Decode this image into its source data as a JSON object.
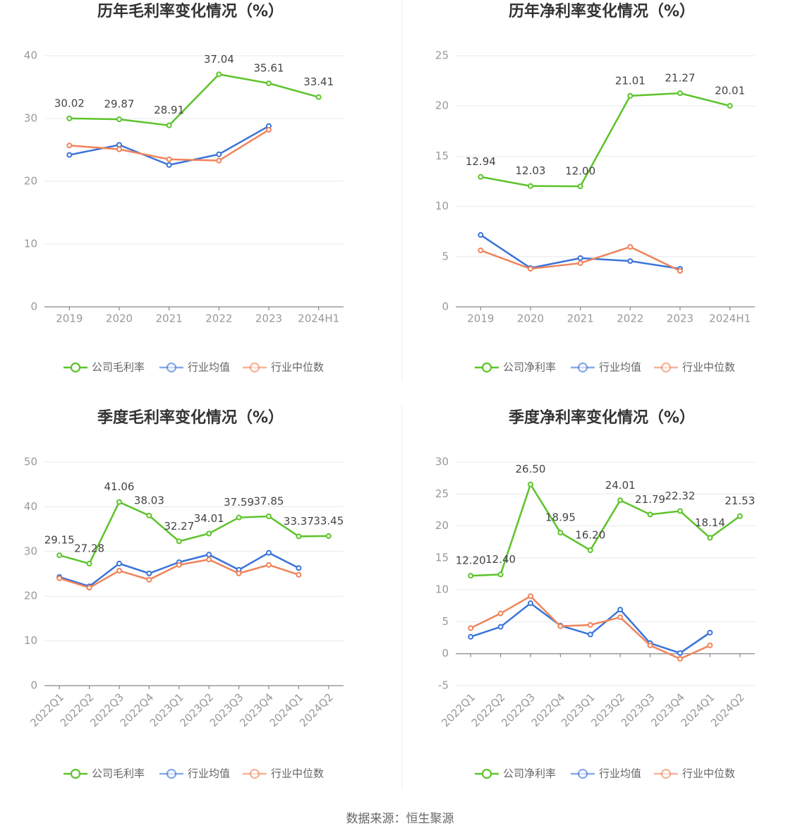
{
  "chart_data": [
    {
      "type": "line",
      "title": "历年毛利率变化情况（%）",
      "categories": [
        "2019",
        "2020",
        "2021",
        "2022",
        "2023",
        "2024H1"
      ],
      "series": [
        {
          "name": "公司毛利率",
          "color": "#5cc32a",
          "values": [
            30.02,
            29.87,
            28.91,
            37.04,
            35.61,
            33.41
          ],
          "value_labels": [
            "30.02",
            "29.87",
            "28.91",
            "37.04",
            "35.61",
            "33.41"
          ]
        },
        {
          "name": "行业均值",
          "color": "#3a73d9",
          "values": [
            24.2,
            25.8,
            22.6,
            24.3,
            28.8,
            null
          ]
        },
        {
          "name": "行业中位数",
          "color": "#f0835a",
          "values": [
            25.7,
            25.1,
            23.5,
            23.3,
            28.2,
            null
          ]
        }
      ],
      "ylim": [
        0,
        40
      ],
      "yticks": [
        0,
        10,
        20,
        30,
        40
      ],
      "grid": true,
      "legend": "bottom"
    },
    {
      "type": "line",
      "title": "历年净利率变化情况（%）",
      "categories": [
        "2019",
        "2020",
        "2021",
        "2022",
        "2023",
        "2024H1"
      ],
      "series": [
        {
          "name": "公司净利率",
          "color": "#5cc32a",
          "values": [
            12.94,
            12.03,
            12.0,
            21.01,
            21.27,
            20.01
          ],
          "value_labels": [
            "12.94",
            "12.03",
            "12.00",
            "21.01",
            "21.27",
            "20.01"
          ]
        },
        {
          "name": "行业均值",
          "color": "#3a73d9",
          "values": [
            7.16,
            3.86,
            4.85,
            4.56,
            3.79,
            null
          ]
        },
        {
          "name": "行业中位数",
          "color": "#f0835a",
          "values": [
            5.62,
            3.79,
            4.35,
            5.97,
            3.58,
            null
          ]
        }
      ],
      "ylim": [
        0,
        25
      ],
      "yticks": [
        0,
        5,
        10,
        15,
        20,
        25
      ],
      "grid": true,
      "legend": "bottom"
    },
    {
      "type": "line",
      "title": "季度毛利率变化情况（%）",
      "categories": [
        "2022Q1",
        "2022Q2",
        "2022Q3",
        "2022Q4",
        "2023Q1",
        "2023Q2",
        "2023Q3",
        "2023Q4",
        "2024Q1",
        "2024Q2"
      ],
      "series": [
        {
          "name": "公司毛利率",
          "color": "#5cc32a",
          "values": [
            29.15,
            27.28,
            41.06,
            38.03,
            32.27,
            34.01,
            37.59,
            37.85,
            33.37,
            33.45
          ],
          "value_labels": [
            "29.15",
            "27.28",
            "41.06",
            "38.03",
            "32.27",
            "34.01",
            "37.59",
            "37.85",
            "33.37",
            "33.45"
          ]
        },
        {
          "name": "行业均值",
          "color": "#3a73d9",
          "values": [
            24.3,
            22.2,
            27.3,
            25.1,
            27.6,
            29.3,
            25.9,
            29.7,
            26.3,
            null
          ]
        },
        {
          "name": "行业中位数",
          "color": "#f0835a",
          "values": [
            24.0,
            21.9,
            25.7,
            23.7,
            27.0,
            28.2,
            25.1,
            27.0,
            24.8,
            null
          ]
        }
      ],
      "ylim": [
        0,
        50
      ],
      "yticks": [
        0,
        10,
        20,
        30,
        40,
        50
      ],
      "grid": true,
      "legend": "bottom"
    },
    {
      "type": "line",
      "title": "季度净利率变化情况（%）",
      "categories": [
        "2022Q1",
        "2022Q2",
        "2022Q3",
        "2022Q4",
        "2023Q1",
        "2023Q2",
        "2023Q3",
        "2023Q4",
        "2024Q1",
        "2024Q2"
      ],
      "series": [
        {
          "name": "公司净利率",
          "color": "#5cc32a",
          "values": [
            12.2,
            12.4,
            26.5,
            18.95,
            16.2,
            24.01,
            21.79,
            22.32,
            18.14,
            21.53
          ],
          "value_labels": [
            "12.20",
            "12.40",
            "26.50",
            "18.95",
            "16.20",
            "24.01",
            "21.79",
            "22.32",
            "18.14",
            "21.53"
          ]
        },
        {
          "name": "行业均值",
          "color": "#3a73d9",
          "values": [
            2.65,
            4.2,
            7.9,
            4.4,
            3.0,
            6.9,
            1.65,
            0.1,
            3.3,
            null
          ]
        },
        {
          "name": "行业中位数",
          "color": "#f0835a",
          "values": [
            4.0,
            6.3,
            9.0,
            4.3,
            4.5,
            5.7,
            1.3,
            -0.8,
            1.3,
            null
          ]
        }
      ],
      "ylim": [
        -5,
        30
      ],
      "yticks": [
        -5,
        0,
        5,
        10,
        15,
        20,
        25,
        30
      ],
      "grid": true,
      "legend": "bottom"
    }
  ],
  "source": "数据来源：恒生聚源"
}
